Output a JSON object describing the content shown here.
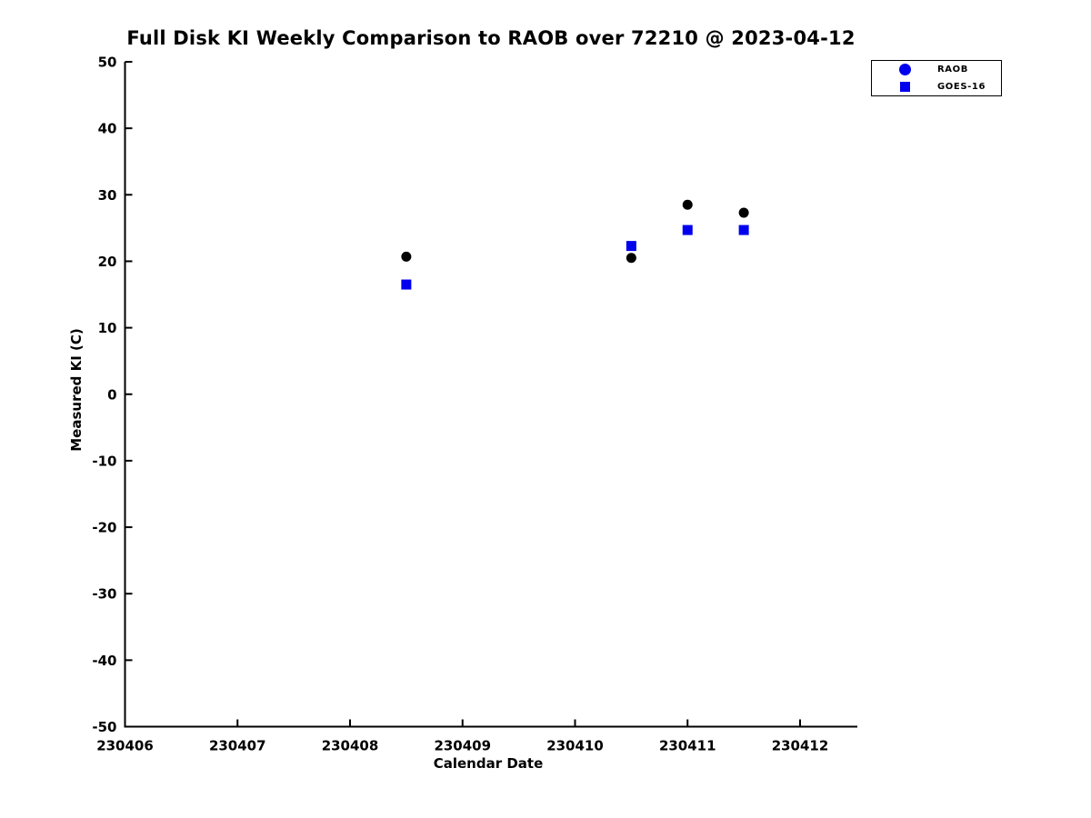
{
  "chart_data": {
    "type": "scatter",
    "title": "Full Disk KI Weekly Comparison to RAOB over 72210 @ 2023-04-12",
    "xlabel": "Calendar Date",
    "ylabel": "Measured KI (C)",
    "xlim": [
      230406,
      230412.5
    ],
    "ylim": [
      -50,
      50
    ],
    "x_ticks": [
      230406,
      230407,
      230408,
      230409,
      230410,
      230411,
      230412
    ],
    "y_ticks": [
      50,
      40,
      30,
      20,
      10,
      0,
      -10,
      -20,
      -30,
      -40,
      -50
    ],
    "grid": false,
    "legend_position": "top-right",
    "axis_color": "#000000",
    "series": [
      {
        "name": "RAOB",
        "marker": "circle",
        "plot_marker_color": "#000000",
        "legend_marker_color": "#0000ee",
        "points": [
          {
            "x": 230408.5,
            "y": 20.7
          },
          {
            "x": 230410.5,
            "y": 20.5
          },
          {
            "x": 230411.0,
            "y": 28.5
          },
          {
            "x": 230411.5,
            "y": 27.3
          }
        ]
      },
      {
        "name": "GOES-16",
        "marker": "square",
        "plot_marker_color": "#0000ee",
        "legend_marker_color": "#0000ee",
        "points": [
          {
            "x": 230408.5,
            "y": 16.5
          },
          {
            "x": 230410.5,
            "y": 22.3
          },
          {
            "x": 230411.0,
            "y": 24.7
          },
          {
            "x": 230411.5,
            "y": 24.7
          }
        ]
      }
    ]
  }
}
